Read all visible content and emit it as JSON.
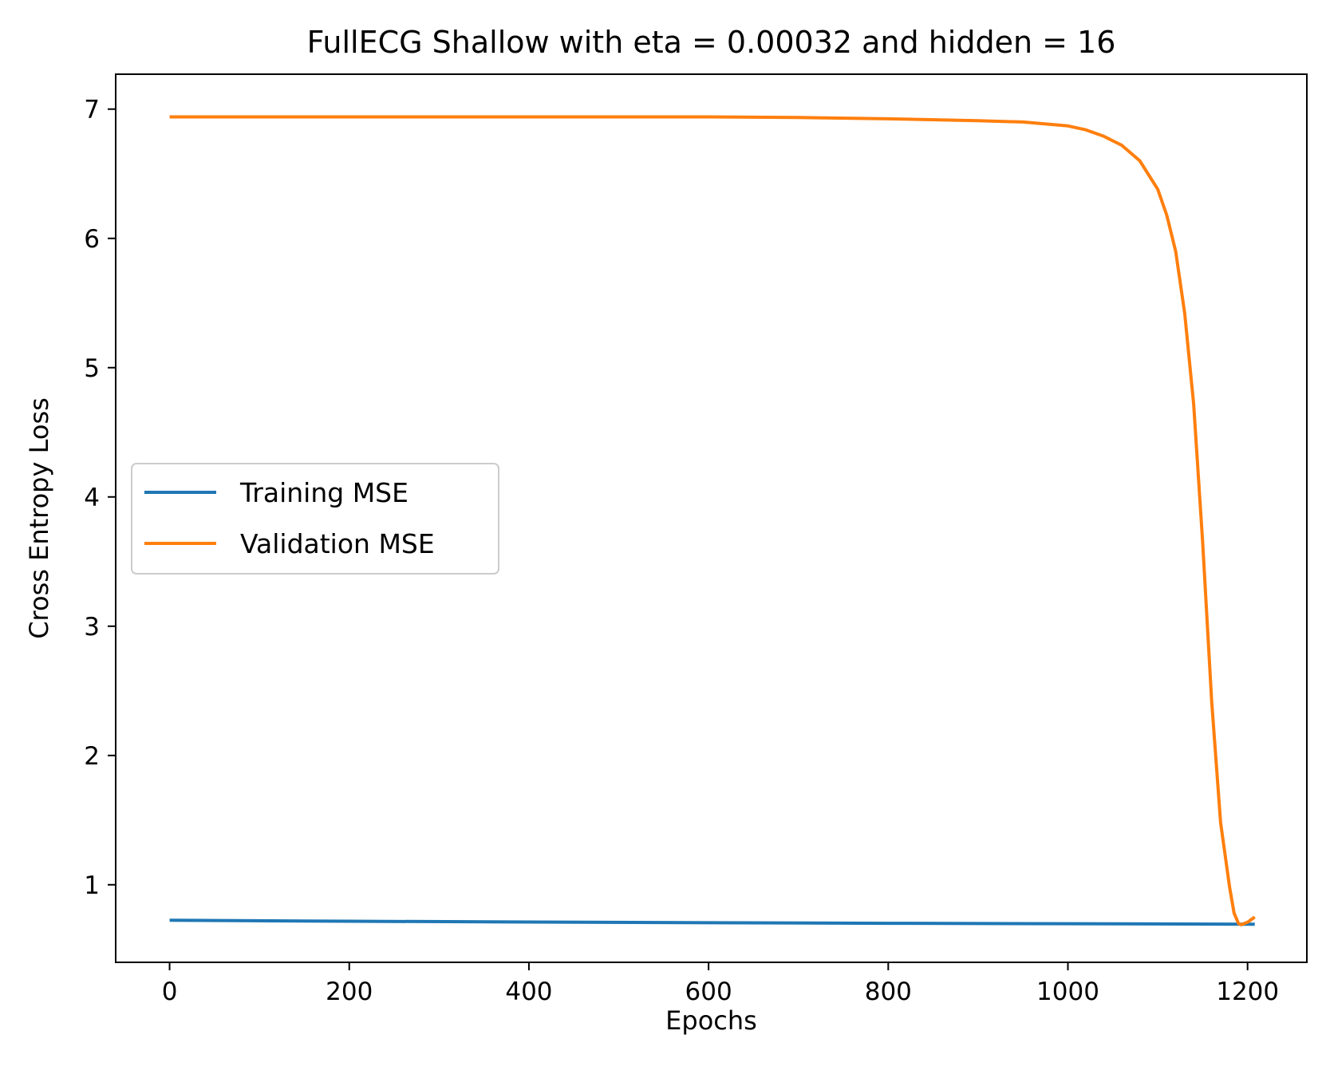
{
  "chart_data": {
    "type": "line",
    "title": "FullECG Shallow with eta = 0.00032 and hidden = 16",
    "xlabel": "Epochs",
    "ylabel": "Cross Entropy Loss",
    "xlim": [
      -60,
      1266
    ],
    "ylim": [
      0.4,
      7.27
    ],
    "x_ticks": [
      0,
      200,
      400,
      600,
      800,
      1000,
      1200
    ],
    "y_ticks": [
      1,
      2,
      3,
      4,
      5,
      6,
      7
    ],
    "grid": false,
    "legend_position": "center-left",
    "series": [
      {
        "name": "Training MSE",
        "color": "#1f77b4",
        "x": [
          0,
          200,
          400,
          600,
          800,
          1000,
          1100,
          1208
        ],
        "y": [
          0.725,
          0.718,
          0.712,
          0.706,
          0.702,
          0.699,
          0.697,
          0.695
        ]
      },
      {
        "name": "Validation MSE",
        "color": "#ff7f0e",
        "x": [
          0,
          200,
          400,
          600,
          700,
          800,
          900,
          950,
          1000,
          1020,
          1040,
          1060,
          1080,
          1100,
          1110,
          1120,
          1130,
          1140,
          1150,
          1160,
          1170,
          1180,
          1185,
          1190,
          1193,
          1196,
          1200,
          1204,
          1208
        ],
        "y": [
          6.94,
          6.94,
          6.94,
          6.94,
          6.935,
          6.925,
          6.91,
          6.9,
          6.87,
          6.84,
          6.79,
          6.72,
          6.6,
          6.38,
          6.18,
          5.9,
          5.42,
          4.72,
          3.65,
          2.42,
          1.48,
          0.98,
          0.78,
          0.7,
          0.69,
          0.7,
          0.71,
          0.73,
          0.75
        ]
      }
    ]
  }
}
